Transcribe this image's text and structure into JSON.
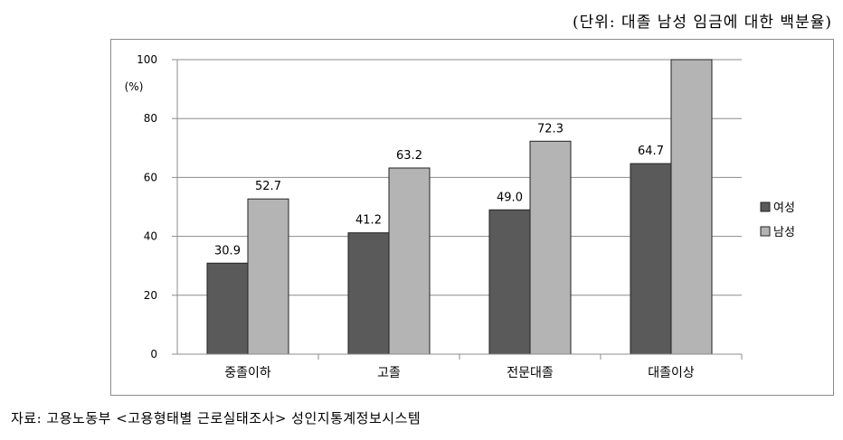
{
  "unit_note": "(단위: 대졸 남성 임금에 대한 백분율)",
  "source_note": "자료: 고용노동부 <고용형태별 근로실태조사> 성인지통계정보시스템",
  "chart_data": {
    "type": "bar",
    "title": "",
    "xlabel": "",
    "ylabel": "(%)",
    "ylim": [
      0,
      100
    ],
    "yticks": [
      0,
      20,
      40,
      60,
      80,
      100
    ],
    "grid": true,
    "legend_position": "right",
    "categories": [
      "중졸이하",
      "고졸",
      "전문대졸",
      "대졸이상"
    ],
    "series": [
      {
        "name": "여성",
        "values": [
          30.9,
          41.2,
          49.0,
          64.7
        ],
        "labels": [
          "30.9",
          "41.2",
          "49.0",
          "64.7"
        ],
        "color": "#5a5a5a"
      },
      {
        "name": "남성",
        "values": [
          52.7,
          63.2,
          72.3,
          100
        ],
        "labels": [
          "52.7",
          "63.2",
          "72.3",
          ""
        ],
        "color": "#b4b4b4"
      }
    ]
  }
}
